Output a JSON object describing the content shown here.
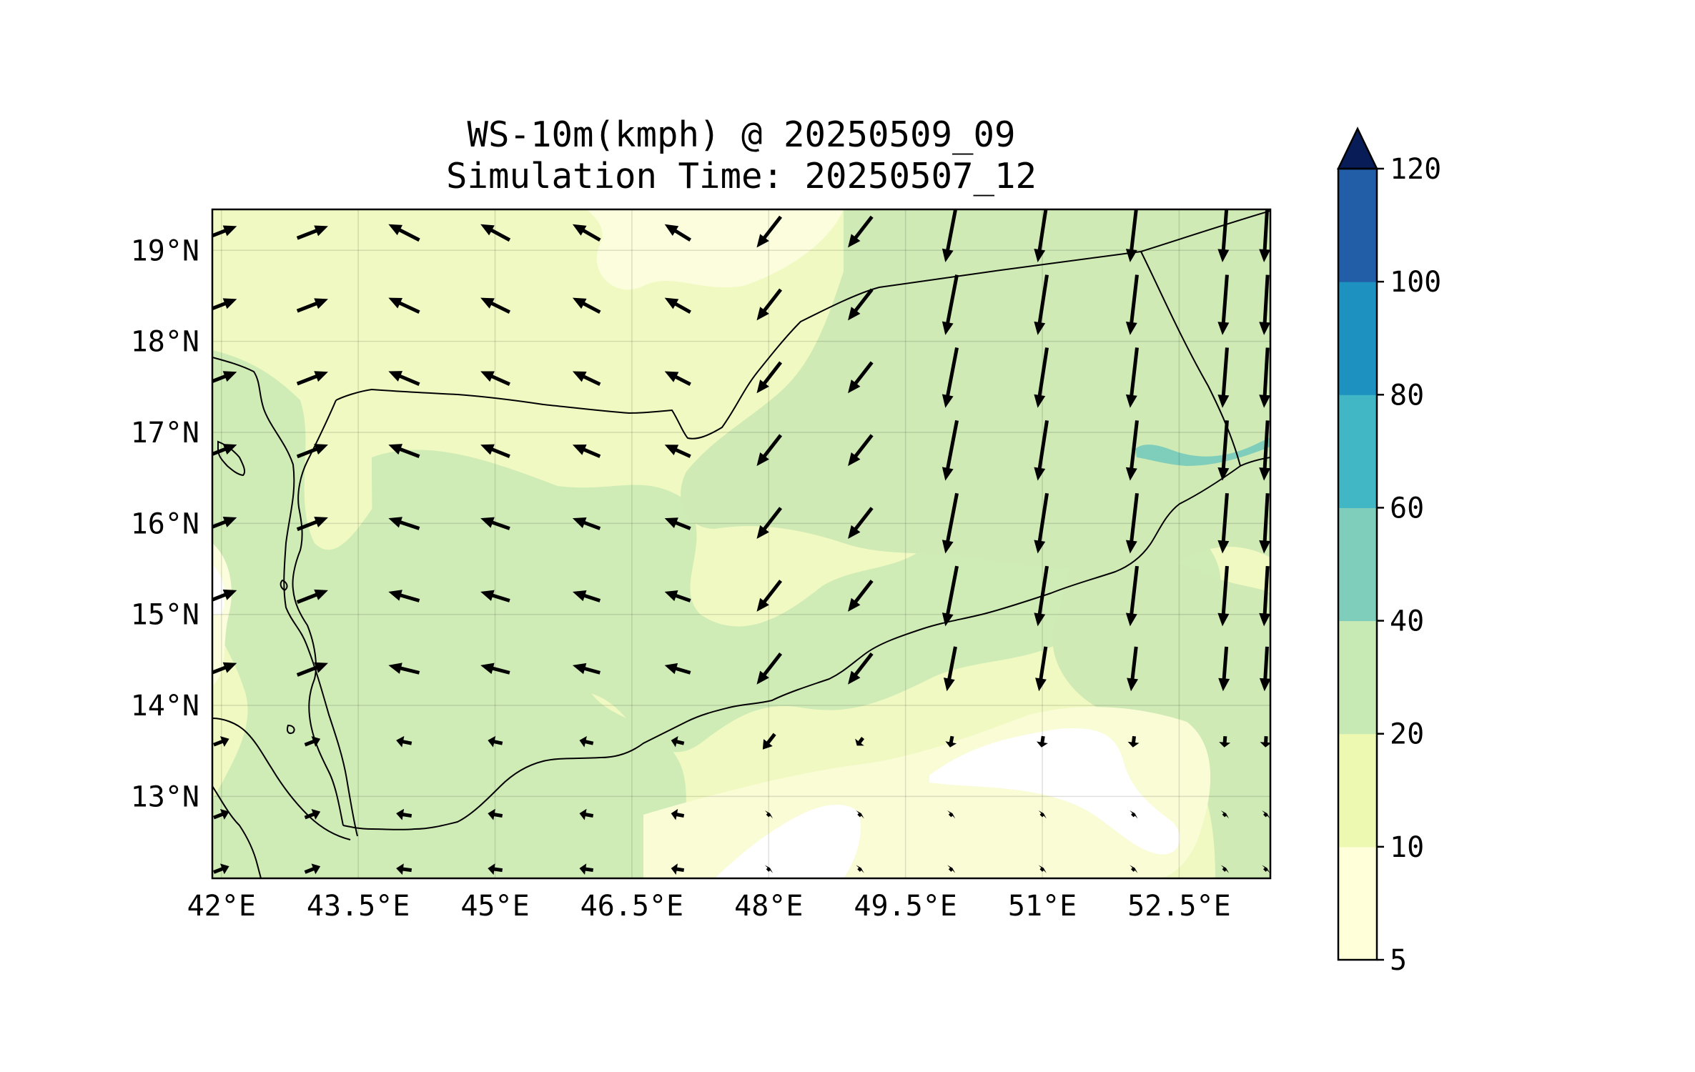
{
  "title": {
    "line1": "WS-10m(kmph) @ 20250509_09",
    "line2": "Simulation Time: 20250507_12"
  },
  "map": {
    "extent": {
      "lon": [
        41.9,
        53.5
      ],
      "lat": [
        12.1,
        19.45
      ]
    },
    "lon_ticks": [
      {
        "value": 42.0,
        "label": "42°E"
      },
      {
        "value": 43.5,
        "label": "43.5°E"
      },
      {
        "value": 45.0,
        "label": "45°E"
      },
      {
        "value": 46.5,
        "label": "46.5°E"
      },
      {
        "value": 48.0,
        "label": "48°E"
      },
      {
        "value": 49.5,
        "label": "49.5°E"
      },
      {
        "value": 51.0,
        "label": "51°E"
      },
      {
        "value": 52.5,
        "label": "52.5°E"
      }
    ],
    "lat_ticks": [
      {
        "value": 13,
        "label": "13°N"
      },
      {
        "value": 14,
        "label": "14°N"
      },
      {
        "value": 15,
        "label": "15°N"
      },
      {
        "value": 16,
        "label": "16°N"
      },
      {
        "value": 17,
        "label": "17°N"
      },
      {
        "value": 18,
        "label": "18°N"
      },
      {
        "value": 19,
        "label": "19°N"
      }
    ],
    "grid": true,
    "field": "10 m wind speed (kmph) filled contours with wind vectors",
    "features": [
      "coastline",
      "country borders"
    ]
  },
  "colorbar": {
    "levels": [
      {
        "value": 5,
        "label": "5"
      },
      {
        "value": 10,
        "label": "10"
      },
      {
        "value": 20,
        "label": "20"
      },
      {
        "value": 40,
        "label": "40"
      },
      {
        "value": 60,
        "label": "60"
      },
      {
        "value": 80,
        "label": "80"
      },
      {
        "value": 100,
        "label": "100"
      },
      {
        "value": 120,
        "label": "120"
      }
    ],
    "colors": [
      "#ffffd9",
      "#edf8b1",
      "#c7e9b4",
      "#7fcdbb",
      "#41b6c4",
      "#1d91c0",
      "#225ea8",
      "#081d58"
    ],
    "extend": "max"
  }
}
